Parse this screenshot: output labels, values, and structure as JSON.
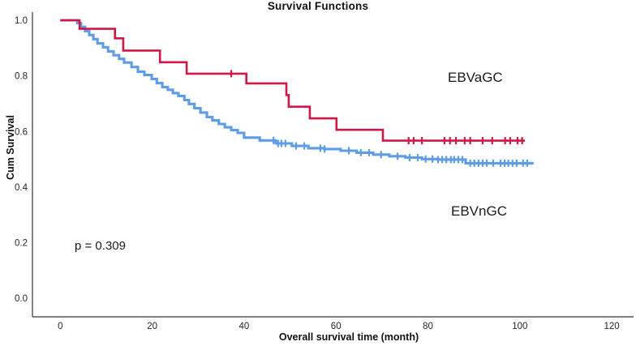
{
  "chart": {
    "title": "Survival Functions",
    "xlabel": "Overall survival time (month)",
    "ylabel": "Cum Survival"
  },
  "chart_data": {
    "type": "line",
    "subtype": "kaplan-meier-step",
    "title": "Survival Functions",
    "xlabel": "Overall survival time (month)",
    "ylabel": "Cum Survival",
    "xlim": [
      0,
      120
    ],
    "ylim": [
      0.0,
      1.0
    ],
    "xticks": [
      0,
      20,
      40,
      60,
      80,
      100,
      120
    ],
    "yticks": [
      0.0,
      0.2,
      0.4,
      0.6,
      0.8,
      1.0
    ],
    "grid": false,
    "legend_position": "none",
    "axis_color": "#333333",
    "series": [
      {
        "name": "EBVnGC",
        "color": "#5E9CE8",
        "points": [
          [
            0,
            1.0
          ],
          [
            2.8,
            1.0
          ],
          [
            3.7,
            0.99
          ],
          [
            4.5,
            0.976
          ],
          [
            5.4,
            0.961
          ],
          [
            6.3,
            0.947
          ],
          [
            7.2,
            0.932
          ],
          [
            8.1,
            0.917
          ],
          [
            9.3,
            0.903
          ],
          [
            10.4,
            0.888
          ],
          [
            11.6,
            0.874
          ],
          [
            12.8,
            0.861
          ],
          [
            13.9,
            0.848
          ],
          [
            15.5,
            0.832
          ],
          [
            16.9,
            0.815
          ],
          [
            18.3,
            0.803
          ],
          [
            19.9,
            0.789
          ],
          [
            21.0,
            0.774
          ],
          [
            22.2,
            0.76
          ],
          [
            23.4,
            0.75
          ],
          [
            24.5,
            0.738
          ],
          [
            25.7,
            0.728
          ],
          [
            27.0,
            0.713
          ],
          [
            28.0,
            0.699
          ],
          [
            29.2,
            0.684
          ],
          [
            30.5,
            0.668
          ],
          [
            31.9,
            0.652
          ],
          [
            33.1,
            0.64
          ],
          [
            34.5,
            0.627
          ],
          [
            35.8,
            0.615
          ],
          [
            37.2,
            0.605
          ],
          [
            38.6,
            0.595
          ],
          [
            40.0,
            0.578
          ],
          [
            43.4,
            0.568
          ],
          [
            46.9,
            0.557
          ],
          [
            50.4,
            0.548
          ],
          [
            54.0,
            0.54
          ],
          [
            57.5,
            0.537
          ],
          [
            61.0,
            0.531
          ],
          [
            64.5,
            0.524
          ],
          [
            68.1,
            0.517
          ],
          [
            71.6,
            0.511
          ],
          [
            75.1,
            0.506
          ],
          [
            78.7,
            0.501
          ],
          [
            82.2,
            0.499
          ],
          [
            88.2,
            0.486
          ]
        ],
        "end_month": 103,
        "censor_months": [
          46.4,
          47.4,
          48.1,
          49.0,
          51.3,
          53.1,
          56.6,
          57.5,
          62.8,
          65.4,
          67.2,
          69.8,
          73.4,
          76.0,
          77.8,
          79.5,
          81.0,
          82.2,
          83.1,
          84.0,
          85.0,
          85.7,
          86.6,
          87.5,
          89.2,
          90.1,
          91.0,
          91.9,
          92.8,
          94.2,
          95.8,
          96.7,
          97.5,
          98.4,
          99.3,
          100.7,
          101.6
        ]
      },
      {
        "name": "EBVaGC",
        "color": "#D31745",
        "points": [
          [
            0,
            1.0
          ],
          [
            4.2,
            0.969
          ],
          [
            11.9,
            0.935
          ],
          [
            13.7,
            0.891
          ],
          [
            21.7,
            0.849
          ],
          [
            27.5,
            0.808
          ],
          [
            40.5,
            0.773
          ],
          [
            49.2,
            0.731
          ],
          [
            49.7,
            0.689
          ],
          [
            54.3,
            0.647
          ],
          [
            60.1,
            0.606
          ],
          [
            70.2,
            0.567
          ]
        ],
        "end_month": 101.1,
        "censor_months": [
          37.2,
          75.8,
          76.9,
          78.7,
          83.6,
          84.8,
          86.1,
          88.0,
          89.2,
          91.9,
          94.0,
          96.8,
          97.9,
          99.5,
          100.5
        ]
      }
    ],
    "annotations": [
      {
        "text": "EBVaGC"
      },
      {
        "text": "EBVnGC"
      },
      {
        "text": "p = 0.309"
      }
    ]
  }
}
